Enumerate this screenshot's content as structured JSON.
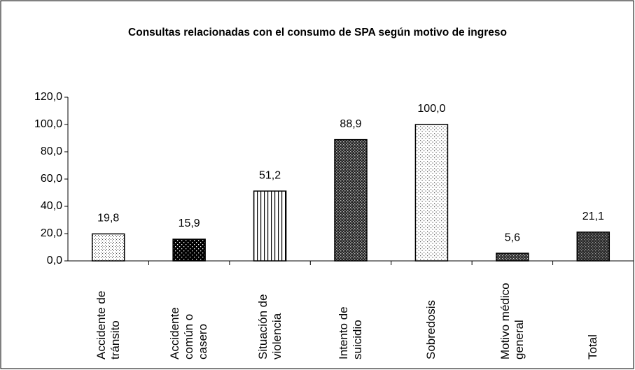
{
  "chart_data": {
    "type": "bar",
    "title": "Consultas relacionadas con el consumo de SPA según motivo de ingreso",
    "categories": [
      "Accidente de tránsito",
      "Accidente común o casero",
      "Situación de violencia",
      "Intento de suicidio",
      "Sobredosis",
      "Motivo médico general",
      "Total"
    ],
    "values": [
      19.8,
      15.9,
      51.2,
      88.9,
      100.0,
      5.6,
      21.1
    ],
    "value_labels": [
      "19,8",
      "15,9",
      "51,2",
      "88,9",
      "100,0",
      "5,6",
      "21,1"
    ],
    "ylim": [
      0,
      120
    ],
    "yticks": [
      {
        "value": 0,
        "label": "0,0"
      },
      {
        "value": 20,
        "label": "20,0"
      },
      {
        "value": 40,
        "label": "40,0"
      },
      {
        "value": 60,
        "label": "60,0"
      },
      {
        "value": 80,
        "label": "80,0"
      },
      {
        "value": 100,
        "label": "100,0"
      },
      {
        "value": 120,
        "label": "120,0"
      }
    ],
    "grid": false
  }
}
